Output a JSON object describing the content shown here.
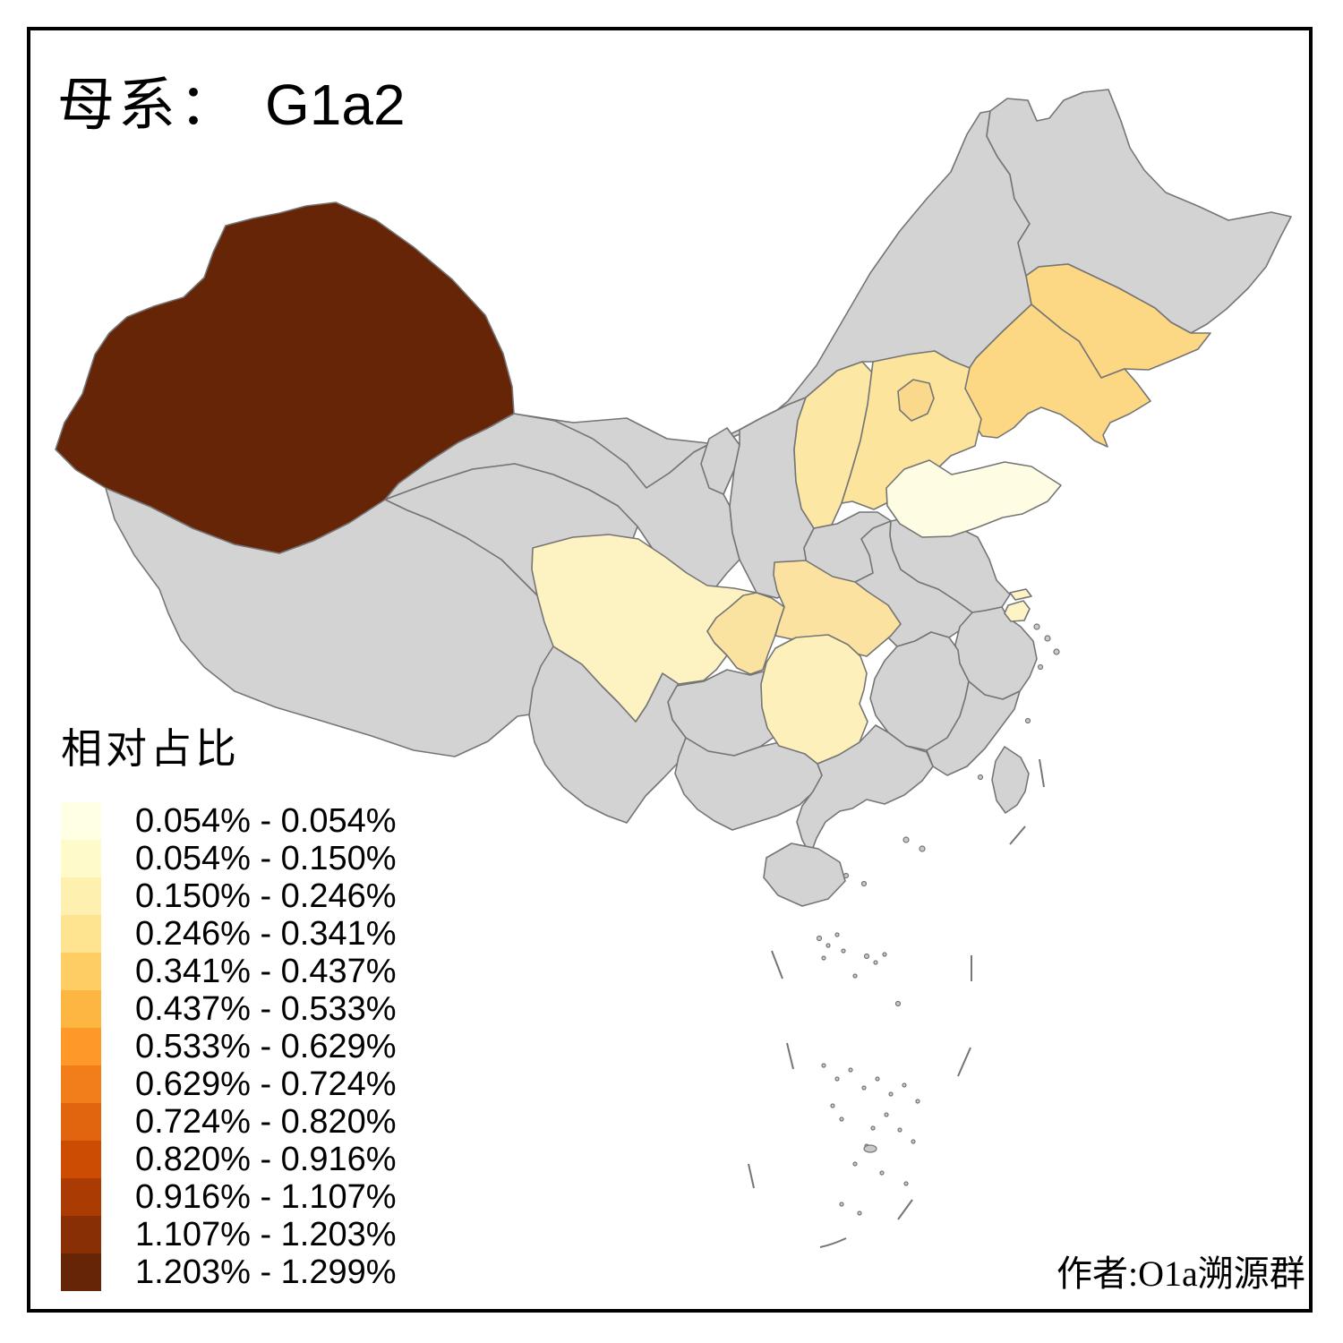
{
  "title": {
    "prefix": "母系：",
    "haplogroup": "G1a2"
  },
  "attribution": "作者:O1a溯源群",
  "legend": {
    "title": "相对占比",
    "classes": [
      {
        "label": "0.054% - 0.054%",
        "color": "#FFFFE5"
      },
      {
        "label": "0.054% - 0.150%",
        "color": "#FFFACA"
      },
      {
        "label": "0.150% - 0.246%",
        "color": "#FEF0AE"
      },
      {
        "label": "0.246% - 0.341%",
        "color": "#FEE391"
      },
      {
        "label": "0.341% - 0.437%",
        "color": "#FECE65"
      },
      {
        "label": "0.437% - 0.533%",
        "color": "#FEB642"
      },
      {
        "label": "0.533% - 0.629%",
        "color": "#FE9929"
      },
      {
        "label": "0.629% - 0.724%",
        "color": "#F27E1B"
      },
      {
        "label": "0.724% - 0.820%",
        "color": "#E1640E"
      },
      {
        "label": "0.820% - 0.916%",
        "color": "#CC4C02"
      },
      {
        "label": "0.916% - 1.107%",
        "color": "#AA3C03"
      },
      {
        "label": "1.107% - 1.203%",
        "color": "#882F05"
      },
      {
        "label": "1.203% - 1.299%",
        "color": "#662506"
      }
    ]
  },
  "map": {
    "background": "#FFFFFF",
    "no_data_fill": "#D3D3D3",
    "border_color": "#757575",
    "frame_color": "#000000"
  },
  "chart_data": {
    "type": "choropleth",
    "title": "母系： G1a2",
    "legend_title": "相对占比",
    "unit": "%",
    "colored_provinces": [
      {
        "id": "xinjiang",
        "name": "新疆",
        "range": "1.203% - 1.299%",
        "color": "#662506"
      },
      {
        "id": "jilin",
        "name": "吉林",
        "range": "0.341% - 0.437%",
        "color": "#FCD784"
      },
      {
        "id": "liaoning",
        "name": "辽宁",
        "range": "0.341% - 0.437%",
        "color": "#FCD784"
      },
      {
        "id": "beijing",
        "name": "北京",
        "range": "0.341% - 0.437%",
        "color": "#FBD98C"
      },
      {
        "id": "hebei",
        "name": "河北",
        "range": "0.246% - 0.341%",
        "color": "#FCE49C"
      },
      {
        "id": "shanxi",
        "name": "山西",
        "range": "0.246% - 0.341%",
        "color": "#FCE8A4"
      },
      {
        "id": "shandong",
        "name": "山东",
        "range": "0.054% - 0.054%",
        "color": "#FEFCE3"
      },
      {
        "id": "sichuan",
        "name": "四川",
        "range": "0.150% - 0.246%",
        "color": "#FDF2C1"
      },
      {
        "id": "chongqing",
        "name": "重庆",
        "range": "0.246% - 0.341%",
        "color": "#FAE3A0"
      },
      {
        "id": "hubei",
        "name": "湖北",
        "range": "0.246% - 0.341%",
        "color": "#FBE2A0"
      },
      {
        "id": "hunan",
        "name": "湖南",
        "range": "0.150% - 0.246%",
        "color": "#FDF0BB"
      },
      {
        "id": "shanghai",
        "name": "上海",
        "range": "0.150% - 0.246%",
        "color": "#FDF3C5"
      }
    ]
  }
}
